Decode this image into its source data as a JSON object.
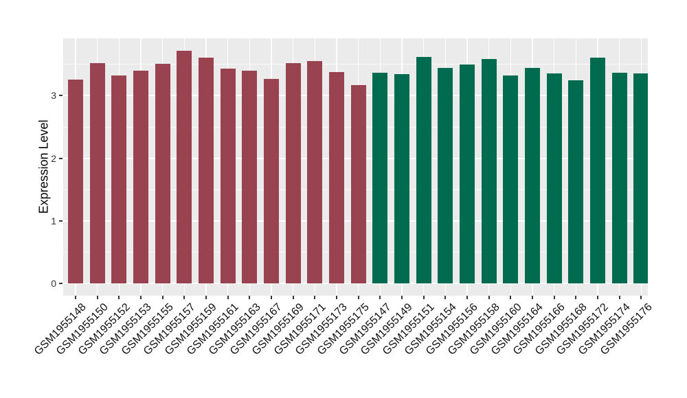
{
  "chart_data": {
    "type": "bar",
    "title": "",
    "xlabel": "",
    "ylabel": "Expression Level",
    "ylim": [
      -0.19,
      3.91
    ],
    "yticks": [
      0,
      1,
      2,
      3
    ],
    "yminor": [
      0.5,
      1.5,
      2.5,
      3.5
    ],
    "grid": "white major/minor horizontal lines and white vertical lines at each bar center on gray panel (ggplot style)",
    "legend": "none",
    "panel_background": "#EBEBEB",
    "grid_color": "#FFFFFF",
    "axis_text_color": "#333333",
    "series": [
      {
        "name": "group-1",
        "color": "#9A4350",
        "points": [
          [
            "GSM1955148",
            3.26
          ],
          [
            "GSM1955150",
            3.52
          ],
          [
            "GSM1955152",
            3.32
          ],
          [
            "GSM1955153",
            3.4
          ],
          [
            "GSM1955155",
            3.51
          ],
          [
            "GSM1955157",
            3.72
          ],
          [
            "GSM1955159",
            3.61
          ],
          [
            "GSM1955161",
            3.43
          ],
          [
            "GSM1955163",
            3.4
          ],
          [
            "GSM1955167",
            3.27
          ],
          [
            "GSM1955169",
            3.52
          ],
          [
            "GSM1955171",
            3.55
          ],
          [
            "GSM1955173",
            3.38
          ],
          [
            "GSM1955175",
            3.17
          ]
        ]
      },
      {
        "name": "group-2",
        "color": "#006B4F",
        "points": [
          [
            "GSM1955147",
            3.37
          ],
          [
            "GSM1955149",
            3.34
          ],
          [
            "GSM1955151",
            3.62
          ],
          [
            "GSM1955154",
            3.44
          ],
          [
            "GSM1955156",
            3.5
          ],
          [
            "GSM1955158",
            3.58
          ],
          [
            "GSM1955160",
            3.32
          ],
          [
            "GSM1955164",
            3.44
          ],
          [
            "GSM1955166",
            3.35
          ],
          [
            "GSM1955168",
            3.24
          ],
          [
            "GSM1955172",
            3.61
          ],
          [
            "GSM1955174",
            3.37
          ],
          [
            "GSM1955176",
            3.35
          ]
        ]
      }
    ]
  }
}
